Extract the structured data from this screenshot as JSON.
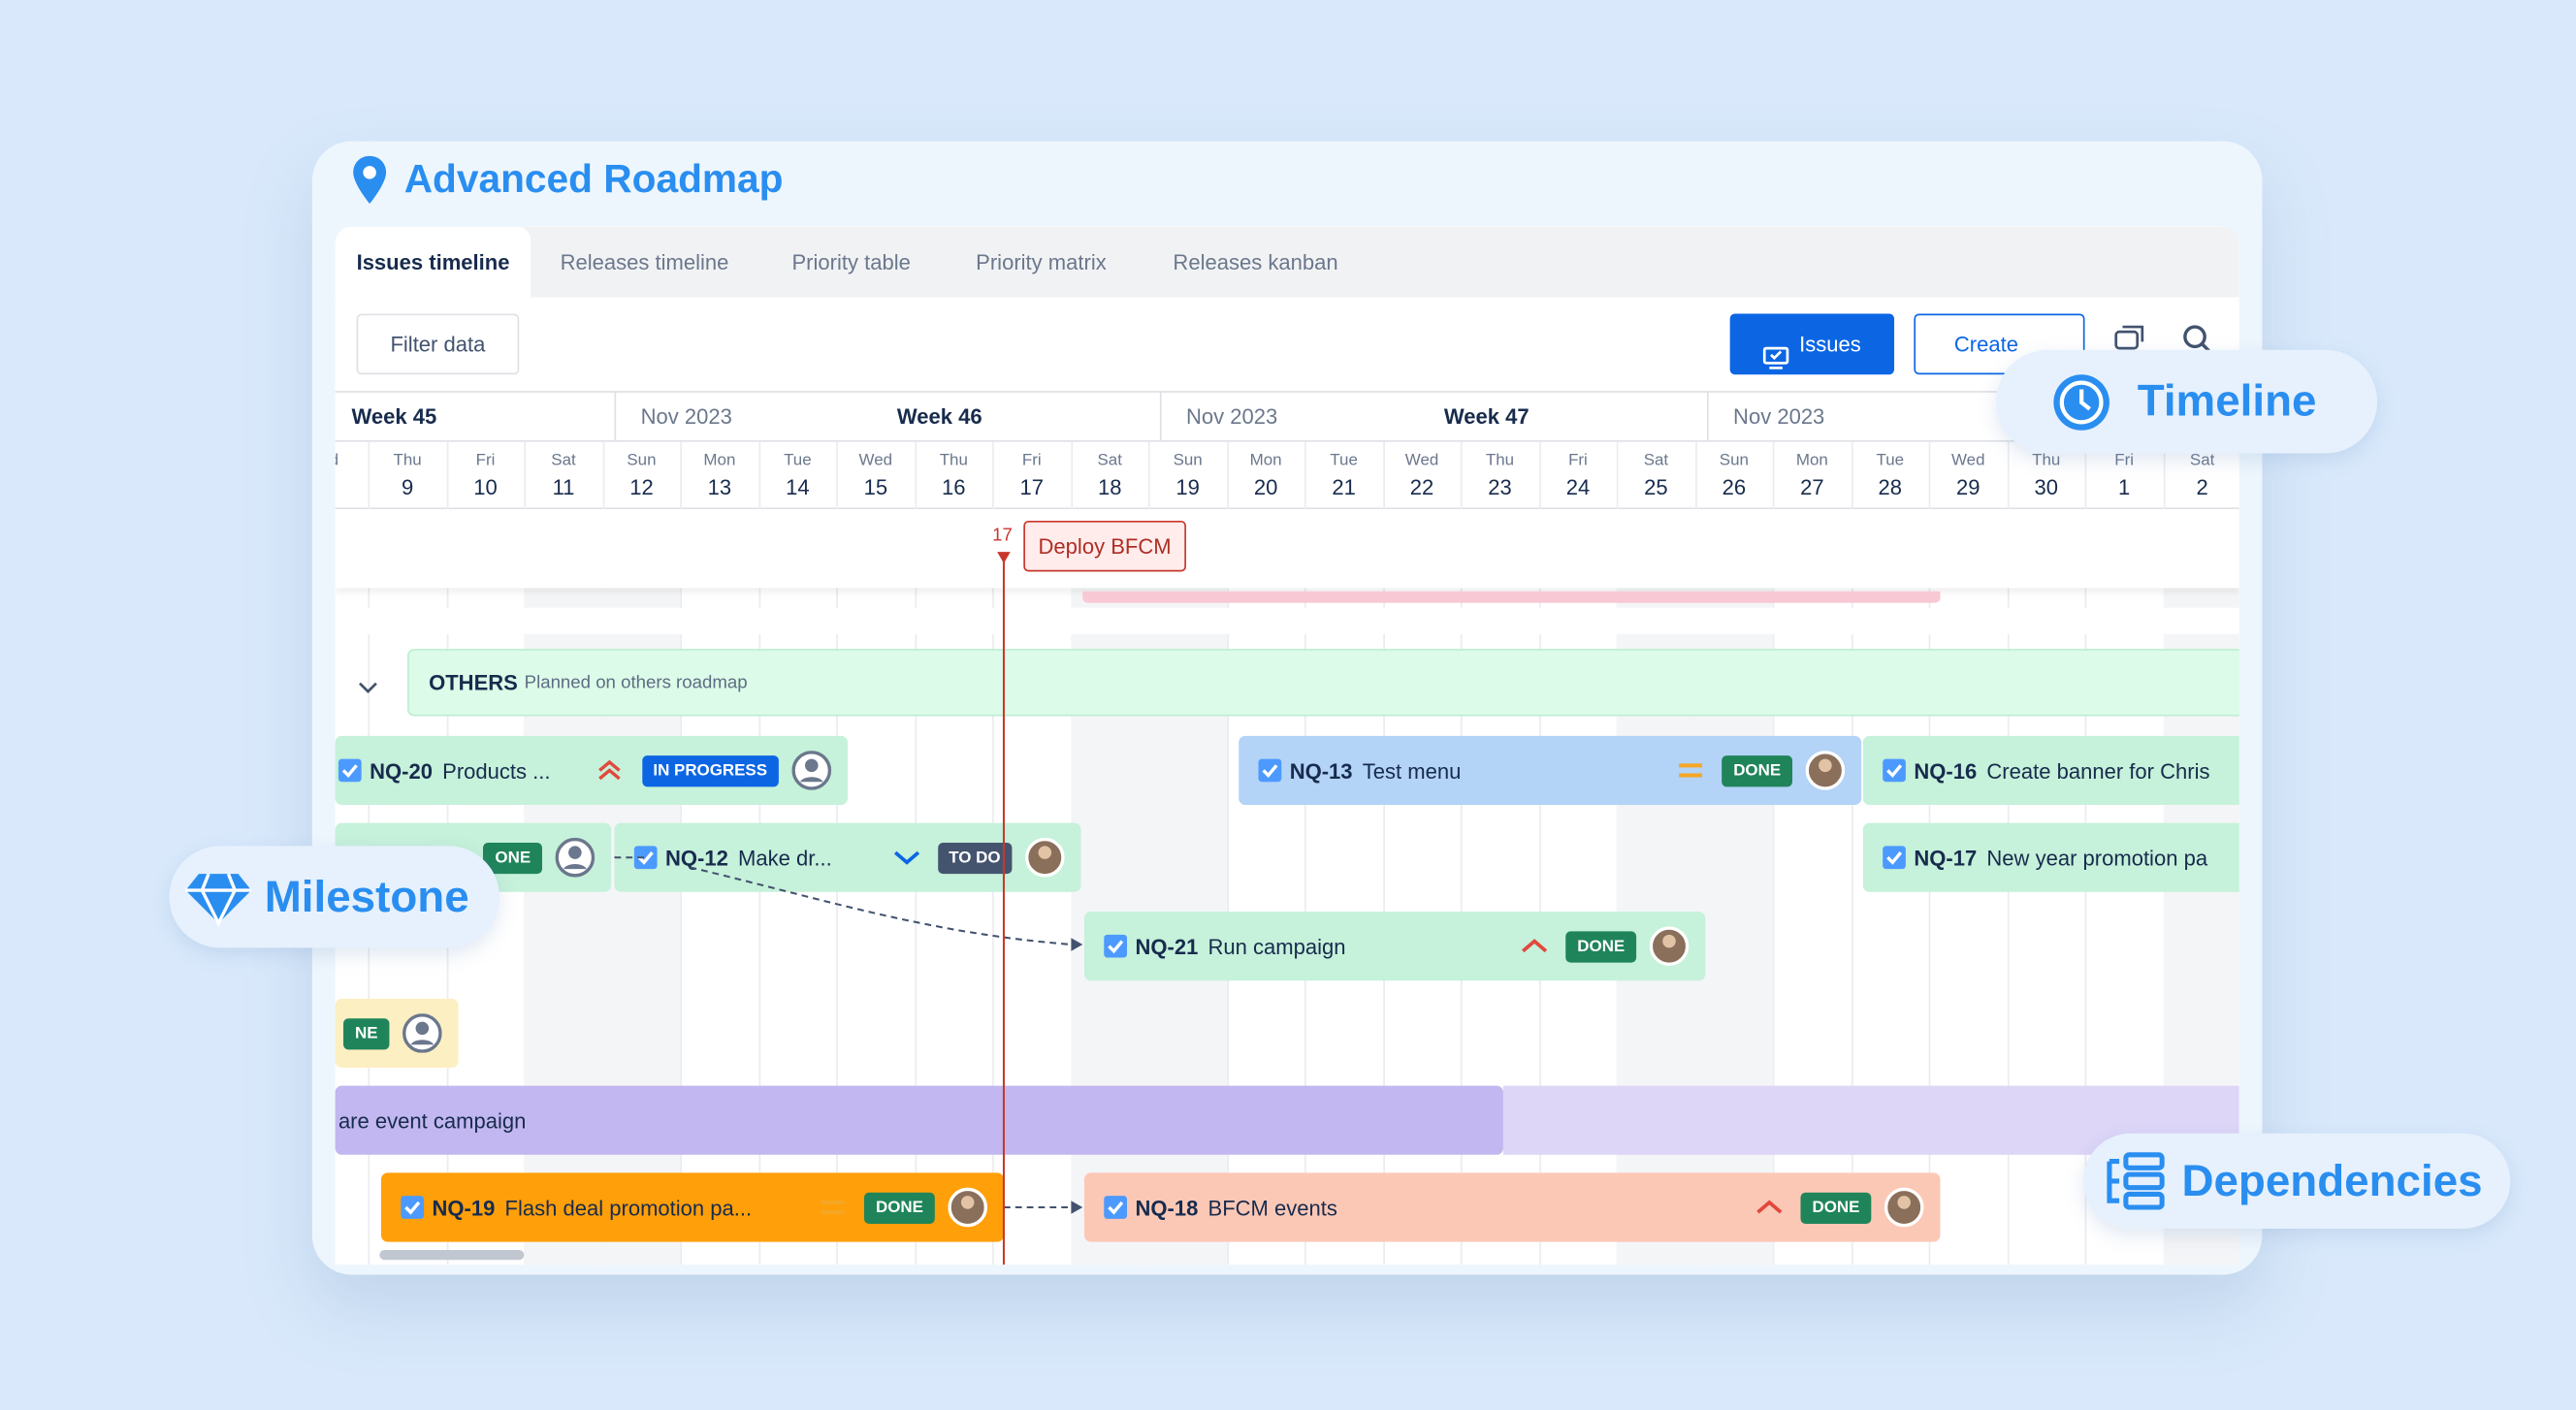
{
  "header": {
    "title": "Advanced Roadmap"
  },
  "tabs": [
    "Issues timeline",
    "Releases timeline",
    "Priority table",
    "Priority matrix",
    "Releases kanban"
  ],
  "toolbar": {
    "filter": "Filter data",
    "issues": "Issues",
    "create": "Create"
  },
  "week_header": [
    "Week 45",
    "Nov 2023",
    "Week 46",
    "Nov 2023",
    "Week 47",
    "Nov 2023"
  ],
  "days": [
    {
      "dow": "ed",
      "num": ""
    },
    {
      "dow": "Thu",
      "num": "9"
    },
    {
      "dow": "Fri",
      "num": "10"
    },
    {
      "dow": "Sat",
      "num": "11"
    },
    {
      "dow": "Sun",
      "num": "12"
    },
    {
      "dow": "Mon",
      "num": "13"
    },
    {
      "dow": "Tue",
      "num": "14"
    },
    {
      "dow": "Wed",
      "num": "15"
    },
    {
      "dow": "Thu",
      "num": "16"
    },
    {
      "dow": "Fri",
      "num": "17"
    },
    {
      "dow": "Sat",
      "num": "18"
    },
    {
      "dow": "Sun",
      "num": "19"
    },
    {
      "dow": "Mon",
      "num": "20"
    },
    {
      "dow": "Tue",
      "num": "21"
    },
    {
      "dow": "Wed",
      "num": "22"
    },
    {
      "dow": "Thu",
      "num": "23"
    },
    {
      "dow": "Fri",
      "num": "24"
    },
    {
      "dow": "Sat",
      "num": "25"
    },
    {
      "dow": "Sun",
      "num": "26"
    },
    {
      "dow": "Mon",
      "num": "27"
    },
    {
      "dow": "Tue",
      "num": "28"
    },
    {
      "dow": "Wed",
      "num": "29"
    },
    {
      "dow": "Thu",
      "num": "30"
    },
    {
      "dow": "Fri",
      "num": "1"
    },
    {
      "dow": "Sat",
      "num": "2"
    }
  ],
  "milestone": {
    "day": "17",
    "label": "Deploy BFCM"
  },
  "group": {
    "name": "OTHERS",
    "note": "Planned on others roadmap"
  },
  "bars": [
    {
      "key": "NQ-20",
      "summary": "Products ...",
      "status": "IN PROGRESS",
      "color": "#c6f1da"
    },
    {
      "key": "NQ-13",
      "summary": "Test menu",
      "status": "DONE",
      "color": "#b3d3f7"
    },
    {
      "key": "NQ-16",
      "summary": "Create banner for Chris",
      "color": "#c6f1da"
    },
    {
      "status": "ONE",
      "color": "#c6f1da"
    },
    {
      "key": "NQ-12",
      "summary": "Make dr...",
      "status": "TO DO",
      "color": "#c6f1da"
    },
    {
      "key": "NQ-17",
      "summary": "New year promotion pa",
      "color": "#c6f1da"
    },
    {
      "key": "NQ-21",
      "summary": "Run campaign",
      "status": "DONE",
      "color": "#c6f1da"
    },
    {
      "status": "NE",
      "color": "#fcefc2"
    },
    {
      "summary": "are event campaign",
      "color": "#c2b7f0"
    },
    {
      "key": "NQ-19",
      "summary": "Flash deal promotion pa...",
      "status": "DONE",
      "color": "#ff9f0a"
    },
    {
      "key": "NQ-18",
      "summary": "BFCM events",
      "status": "DONE",
      "color": "#fcc8b6"
    }
  ],
  "callouts": [
    "Timeline",
    "Milestone",
    "Dependencies"
  ]
}
